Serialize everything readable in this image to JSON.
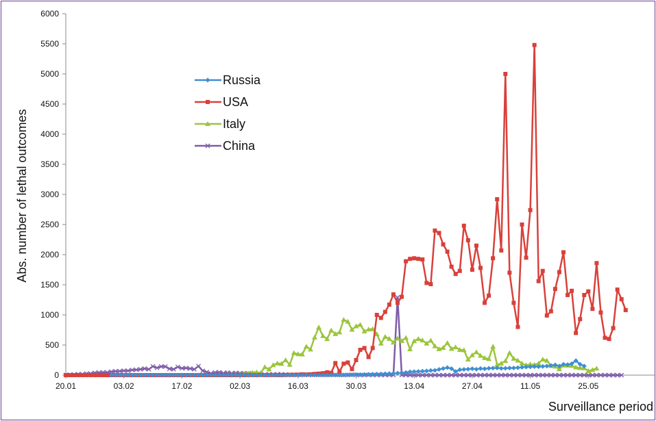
{
  "chart_data": {
    "type": "line",
    "title": "",
    "xlabel": "Surveillance period",
    "ylabel": "Abs. number of lethal outcomes",
    "ylim": [
      0,
      6000
    ],
    "yticks": [
      0,
      500,
      1000,
      1500,
      2000,
      2500,
      3000,
      3500,
      4000,
      4500,
      5000,
      5500,
      6000
    ],
    "xlim": [
      "20.01",
      "31.05"
    ],
    "xticks": [
      "20.01",
      "03.02",
      "17.02",
      "02.03",
      "16.03",
      "30.03",
      "13.04",
      "27.04",
      "11.05",
      "25.05"
    ],
    "grid": false,
    "legend_position": "upper-left inside plot",
    "series": [
      {
        "name": "Russia",
        "color": "#3f8fd2",
        "marker": "diamond",
        "start": "31.01",
        "values": [
          0,
          0,
          0,
          0,
          0,
          0,
          0,
          0,
          0,
          0,
          0,
          0,
          0,
          0,
          0,
          0,
          0,
          0,
          0,
          0,
          0,
          0,
          0,
          0,
          0,
          0,
          0,
          0,
          0,
          0,
          0,
          0,
          0,
          0,
          0,
          0,
          0,
          0,
          0,
          0,
          0,
          0,
          0,
          0,
          0,
          0,
          0,
          1,
          0,
          1,
          1,
          1,
          1,
          1,
          2,
          2,
          3,
          4,
          6,
          8,
          9,
          11,
          13,
          16,
          17,
          20,
          23,
          25,
          29,
          32,
          40,
          44,
          55,
          58,
          61,
          66,
          70,
          76,
          80,
          95,
          110,
          125,
          108,
          60,
          90,
          95,
          100,
          106,
          98,
          110,
          105,
          113,
          116,
          120,
          112,
          114,
          118,
          120,
          123,
          130,
          135,
          138,
          142,
          140,
          145,
          150,
          160,
          170,
          150,
          180,
          175,
          190,
          240,
          180,
          150
        ]
      },
      {
        "name": "USA",
        "color": "#d9403a",
        "marker": "square",
        "start": "20.01",
        "values": [
          0,
          0,
          0,
          0,
          0,
          0,
          0,
          0,
          0,
          0,
          0,
          0,
          0,
          0,
          0,
          0,
          0,
          0,
          0,
          0,
          0,
          0,
          0,
          0,
          0,
          0,
          0,
          0,
          0,
          0,
          0,
          0,
          0,
          0,
          0,
          0,
          0,
          0,
          0,
          0,
          0,
          0,
          1,
          0,
          1,
          1,
          0,
          3,
          1,
          2,
          2,
          1,
          1,
          3,
          5,
          7,
          8,
          13,
          10,
          14,
          20,
          25,
          32,
          47,
          38,
          200,
          60,
          190,
          210,
          100,
          250,
          420,
          450,
          300,
          450,
          1000,
          950,
          1050,
          1170,
          1340,
          1200,
          1300,
          1890,
          1930,
          1940,
          1930,
          1920,
          1530,
          1510,
          2400,
          2360,
          2170,
          2050,
          1800,
          1680,
          1730,
          2480,
          2240,
          1750,
          2150,
          1780,
          1200,
          1320,
          1940,
          2920,
          2070,
          5000,
          1700,
          1200,
          800,
          2500,
          1950,
          2740,
          5480,
          1560,
          1730,
          990,
          1060,
          1430,
          1710,
          2040,
          1330,
          1400,
          700,
          930,
          1330,
          1390,
          1100,
          1860,
          1040,
          620,
          600,
          780,
          1420,
          1260,
          1080
        ]
      },
      {
        "name": "Italy",
        "color": "#9bc53d",
        "marker": "triangle",
        "start": "23.02",
        "values": [
          1,
          2,
          3,
          5,
          4,
          7,
          10,
          12,
          11,
          27,
          28,
          41,
          49,
          36,
          133,
          97,
          168,
          196,
          189,
          250,
          175,
          368,
          349,
          345,
          475,
          427,
          627,
          793,
          651,
          601,
          743,
          683,
          712,
          919,
          889,
          756,
          812,
          837,
          727,
          760,
          766,
          681,
          525,
          636,
          604,
          542,
          610,
          570,
          619,
          431,
          566,
          602,
          578,
          525,
          575,
          482,
          433,
          454,
          534,
          437,
          464,
          420,
          415,
          260,
          333,
          382,
          323,
          285,
          269,
          474,
          174,
          195,
          236,
          369,
          274,
          243,
          194,
          165,
          179,
          172,
          195,
          262,
          242,
          153,
          145,
          99,
          162,
          161,
          156,
          130,
          119,
          117,
          70,
          87,
          111
        ]
      },
      {
        "name": "China",
        "color": "#7d5ca8",
        "marker": "x",
        "start": "20.01",
        "values": [
          3,
          8,
          9,
          16,
          16,
          25,
          26,
          38,
          43,
          46,
          45,
          57,
          64,
          66,
          73,
          73,
          86,
          89,
          97,
          108,
          97,
          146,
          121,
          143,
          142,
          105,
          98,
          136,
          114,
          118,
          109,
          97,
          150,
          71,
          52,
          29,
          44,
          47,
          35,
          42,
          31,
          38,
          31,
          30,
          28,
          27,
          22,
          11,
          7,
          13,
          10,
          14,
          13,
          11,
          8,
          3,
          7,
          6,
          9,
          10,
          5,
          5,
          4,
          4,
          5,
          6,
          4,
          1,
          4,
          6,
          5,
          1,
          1,
          4,
          1,
          2,
          1,
          3,
          1,
          1,
          1290,
          1,
          1,
          0,
          0,
          0,
          0,
          0,
          0,
          0,
          0,
          0,
          0,
          0,
          0,
          0,
          0,
          0,
          0,
          0,
          0,
          0,
          0,
          0,
          0,
          0,
          0,
          0,
          0,
          0,
          0,
          0,
          0,
          0,
          0,
          0,
          0,
          0,
          0,
          0,
          0,
          0,
          0,
          0,
          0,
          0,
          0,
          0,
          0,
          0,
          0,
          0,
          0,
          0,
          0
        ]
      }
    ]
  }
}
